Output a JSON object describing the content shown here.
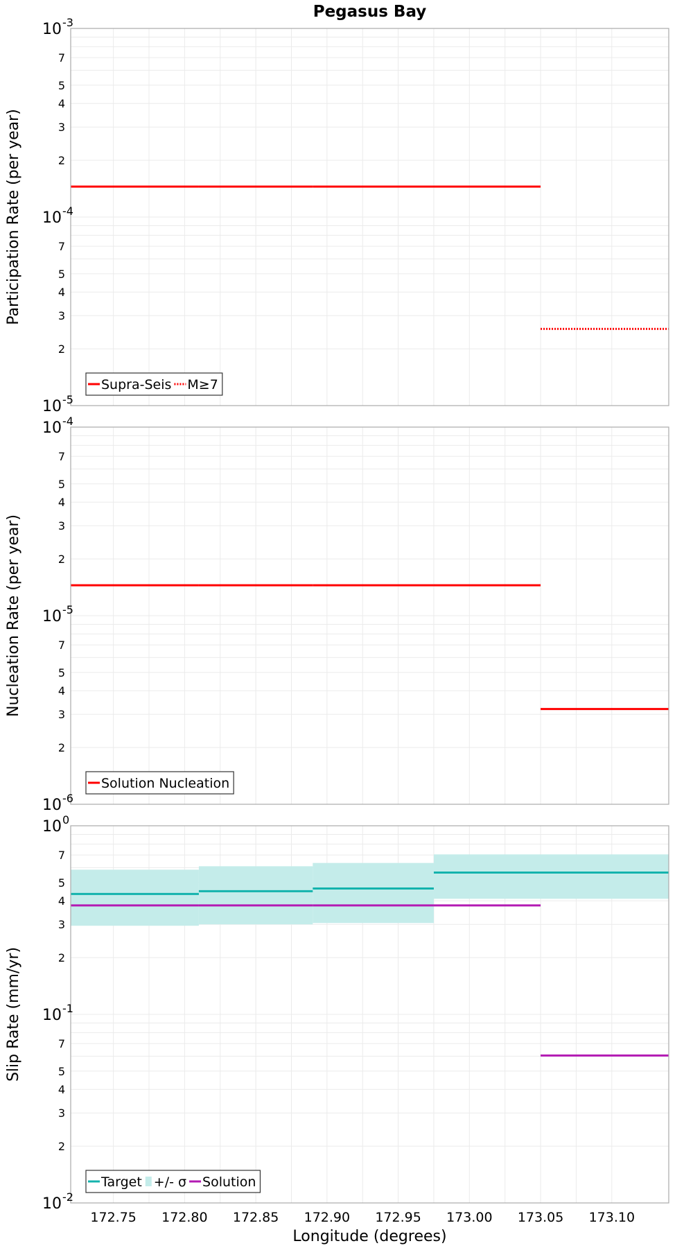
{
  "chart_data": [
    {
      "type": "line",
      "title": "Pegasus Bay",
      "xlabel": "",
      "ylabel": "Participation Rate (per year)",
      "xlim": [
        172.72,
        173.14
      ],
      "ylim": [
        1e-05,
        0.001
      ],
      "yscale": "log",
      "grid": true,
      "legend_position": "bottom-left",
      "y_major_ticks": [
        {
          "value": 1e-05,
          "base": "10",
          "exp": "-5"
        },
        {
          "value": 0.0001,
          "base": "10",
          "exp": "-4"
        },
        {
          "value": 0.001,
          "base": "10",
          "exp": "-3"
        }
      ],
      "y_minor_ticks": [
        {
          "value": 2e-05,
          "label": "2"
        },
        {
          "value": 3e-05,
          "label": "3"
        },
        {
          "value": 4e-05,
          "label": "4"
        },
        {
          "value": 5e-05,
          "label": "5"
        },
        {
          "value": 7e-05,
          "label": "7"
        },
        {
          "value": 0.0002,
          "label": "2"
        },
        {
          "value": 0.0003,
          "label": "3"
        },
        {
          "value": 0.0004,
          "label": "4"
        },
        {
          "value": 0.0005,
          "label": "5"
        },
        {
          "value": 0.0007,
          "label": "7"
        }
      ],
      "series": [
        {
          "name": "Supra-Seis",
          "color": "#ff0000",
          "style": "solid",
          "segments": [
            {
              "x0": 172.72,
              "x1": 172.81,
              "y": 0.000145
            },
            {
              "x0": 172.81,
              "x1": 172.89,
              "y": 0.000145
            },
            {
              "x0": 172.89,
              "x1": 172.975,
              "y": 0.000145
            },
            {
              "x0": 172.975,
              "x1": 173.05,
              "y": 0.000145
            }
          ]
        },
        {
          "name": "M≥7",
          "color": "#ff0000",
          "style": "dotted",
          "segments": [
            {
              "x0": 173.05,
              "x1": 173.14,
              "y": 2.55e-05
            }
          ]
        }
      ]
    },
    {
      "type": "line",
      "title": "",
      "xlabel": "",
      "ylabel": "Nucleation Rate (per year)",
      "xlim": [
        172.72,
        173.14
      ],
      "ylim": [
        1e-06,
        0.0001
      ],
      "yscale": "log",
      "grid": true,
      "legend_position": "bottom-left",
      "y_major_ticks": [
        {
          "value": 1e-06,
          "base": "10",
          "exp": "-6"
        },
        {
          "value": 1e-05,
          "base": "10",
          "exp": "-5"
        },
        {
          "value": 0.0001,
          "base": "10",
          "exp": "-4"
        }
      ],
      "y_minor_ticks": [
        {
          "value": 2e-06,
          "label": "2"
        },
        {
          "value": 3e-06,
          "label": "3"
        },
        {
          "value": 4e-06,
          "label": "4"
        },
        {
          "value": 5e-06,
          "label": "5"
        },
        {
          "value": 7e-06,
          "label": "7"
        },
        {
          "value": 2e-05,
          "label": "2"
        },
        {
          "value": 3e-05,
          "label": "3"
        },
        {
          "value": 4e-05,
          "label": "4"
        },
        {
          "value": 5e-05,
          "label": "5"
        },
        {
          "value": 7e-05,
          "label": "7"
        }
      ],
      "series": [
        {
          "name": "Solution Nucleation",
          "color": "#ff0000",
          "style": "solid",
          "segments": [
            {
              "x0": 172.72,
              "x1": 172.81,
              "y": 1.45e-05
            },
            {
              "x0": 172.81,
              "x1": 172.89,
              "y": 1.45e-05
            },
            {
              "x0": 172.89,
              "x1": 172.975,
              "y": 1.45e-05
            },
            {
              "x0": 172.975,
              "x1": 173.05,
              "y": 1.45e-05
            },
            {
              "x0": 173.05,
              "x1": 173.14,
              "y": 3.2e-06
            }
          ]
        }
      ]
    },
    {
      "type": "line",
      "title": "",
      "xlabel": "Longitude (degrees)",
      "ylabel": "Slip Rate (mm/yr)",
      "xlim": [
        172.72,
        173.14
      ],
      "ylim": [
        0.01,
        1
      ],
      "yscale": "log",
      "grid": true,
      "legend_position": "bottom-left",
      "x_ticks": [
        {
          "value": 172.75,
          "label": "172.75"
        },
        {
          "value": 172.8,
          "label": "172.80"
        },
        {
          "value": 172.85,
          "label": "172.85"
        },
        {
          "value": 172.9,
          "label": "172.90"
        },
        {
          "value": 172.95,
          "label": "172.95"
        },
        {
          "value": 173.0,
          "label": "173.00"
        },
        {
          "value": 173.05,
          "label": "173.05"
        },
        {
          "value": 173.1,
          "label": "173.10"
        }
      ],
      "y_major_ticks": [
        {
          "value": 0.01,
          "base": "10",
          "exp": "-2"
        },
        {
          "value": 0.1,
          "base": "10",
          "exp": "-1"
        },
        {
          "value": 1,
          "base": "10",
          "exp": "0"
        }
      ],
      "y_minor_ticks": [
        {
          "value": 0.02,
          "label": "2"
        },
        {
          "value": 0.03,
          "label": "3"
        },
        {
          "value": 0.04,
          "label": "4"
        },
        {
          "value": 0.05,
          "label": "5"
        },
        {
          "value": 0.07,
          "label": "7"
        },
        {
          "value": 0.2,
          "label": "2"
        },
        {
          "value": 0.3,
          "label": "3"
        },
        {
          "value": 0.4,
          "label": "4"
        },
        {
          "value": 0.5,
          "label": "5"
        },
        {
          "value": 0.7,
          "label": "7"
        }
      ],
      "bands": [
        {
          "name": "+/- σ",
          "color": "#c4ecea",
          "segments": [
            {
              "x0": 172.72,
              "x1": 172.81,
              "low": 0.295,
              "high": 0.585
            },
            {
              "x0": 172.81,
              "x1": 172.89,
              "low": 0.3,
              "high": 0.61
            },
            {
              "x0": 172.89,
              "x1": 172.975,
              "low": 0.305,
              "high": 0.635
            },
            {
              "x0": 172.975,
              "x1": 173.14,
              "low": 0.41,
              "high": 0.705
            }
          ]
        }
      ],
      "series": [
        {
          "name": "Target",
          "color": "#14b3ad",
          "style": "solid",
          "segments": [
            {
              "x0": 172.72,
              "x1": 172.81,
              "y": 0.435
            },
            {
              "x0": 172.81,
              "x1": 172.89,
              "y": 0.45
            },
            {
              "x0": 172.89,
              "x1": 172.975,
              "y": 0.465
            },
            {
              "x0": 172.975,
              "x1": 173.14,
              "y": 0.565
            }
          ]
        },
        {
          "name": "Solution",
          "color": "#b31ab3",
          "style": "solid",
          "segments": [
            {
              "x0": 172.72,
              "x1": 172.81,
              "y": 0.378
            },
            {
              "x0": 172.81,
              "x1": 172.89,
              "y": 0.378
            },
            {
              "x0": 172.89,
              "x1": 172.975,
              "y": 0.378
            },
            {
              "x0": 172.975,
              "x1": 173.05,
              "y": 0.378
            },
            {
              "x0": 173.05,
              "x1": 173.14,
              "y": 0.0605
            }
          ]
        }
      ]
    }
  ]
}
